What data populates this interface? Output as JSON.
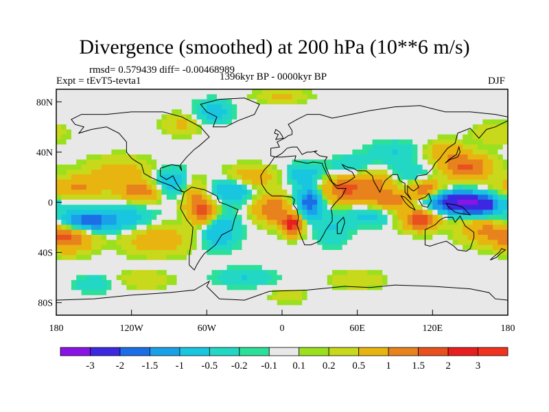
{
  "chart_data": {
    "type": "heatmap",
    "title": "Divergence (smoothed) at 200 hPa (10**6 m/s)",
    "stats_text": "rmsd= 0.579439 diff= -0.00468989",
    "experiment_text": "Expt = tEvT5-tevta1",
    "period_text": "1396kyr BP - 0000kyr BP",
    "season_text": "DJF",
    "x_range": [
      -180,
      180
    ],
    "y_range": [
      -90,
      90
    ],
    "x_ticks": [
      {
        "value": -180,
        "label": "180"
      },
      {
        "value": -120,
        "label": "120W"
      },
      {
        "value": -60,
        "label": "60W"
      },
      {
        "value": 0,
        "label": "0"
      },
      {
        "value": 60,
        "label": "60E"
      },
      {
        "value": 120,
        "label": "120E"
      },
      {
        "value": 180,
        "label": "180"
      }
    ],
    "y_ticks": [
      {
        "value": 80,
        "label": "80N"
      },
      {
        "value": 40,
        "label": "40N"
      },
      {
        "value": 0,
        "label": "0"
      },
      {
        "value": -40,
        "label": "40S"
      },
      {
        "value": -80,
        "label": "80S"
      }
    ],
    "colorbar": {
      "levels": [
        "-3",
        "-2",
        "-1.5",
        "-1",
        "-0.5",
        "-0.2",
        "-0.1",
        "0.1",
        "0.2",
        "0.5",
        "1",
        "1.5",
        "2",
        "3"
      ],
      "colors": [
        "#8a14e6",
        "#3c28e0",
        "#1c6ee6",
        "#1aa0e8",
        "#19c6e0",
        "#22d8c4",
        "#2ce09a",
        "#e8e8e8",
        "#9ae01e",
        "#c8d81a",
        "#e8b410",
        "#e8821c",
        "#e8501e",
        "#e81e1e",
        "#f0321e"
      ]
    },
    "anomalies": [
      {
        "lon": -155,
        "lat": -15,
        "amp": -2.0,
        "sx": 16,
        "sy": 6
      },
      {
        "lon": -165,
        "lat": 12,
        "amp": 1.0,
        "sx": 18,
        "sy": 6
      },
      {
        "lon": -170,
        "lat": -28,
        "amp": 1.6,
        "sx": 14,
        "sy": 8
      },
      {
        "lon": -130,
        "lat": 24,
        "amp": 0.8,
        "sx": 18,
        "sy": 8
      },
      {
        "lon": -120,
        "lat": -12,
        "amp": -0.6,
        "sx": 14,
        "sy": 8
      },
      {
        "lon": -112,
        "lat": 8,
        "amp": 1.3,
        "sx": 12,
        "sy": 6
      },
      {
        "lon": -100,
        "lat": -30,
        "amp": 1.0,
        "sx": 18,
        "sy": 8
      },
      {
        "lon": -88,
        "lat": 15,
        "amp": -1.0,
        "sx": 10,
        "sy": 8
      },
      {
        "lon": -70,
        "lat": 5,
        "amp": 0.9,
        "sx": 8,
        "sy": 10
      },
      {
        "lon": -62,
        "lat": -8,
        "amp": 1.6,
        "sx": 8,
        "sy": 7
      },
      {
        "lon": -50,
        "lat": -22,
        "amp": -1.0,
        "sx": 10,
        "sy": 10
      },
      {
        "lon": -40,
        "lat": 10,
        "amp": -1.0,
        "sx": 12,
        "sy": 7
      },
      {
        "lon": -25,
        "lat": 20,
        "amp": 1.0,
        "sx": 14,
        "sy": 6
      },
      {
        "lon": -8,
        "lat": -5,
        "amp": 1.5,
        "sx": 10,
        "sy": 8
      },
      {
        "lon": 8,
        "lat": -18,
        "amp": 2.2,
        "sx": 6,
        "sy": 6
      },
      {
        "lon": 22,
        "lat": 0,
        "amp": -2.0,
        "sx": 7,
        "sy": 8
      },
      {
        "lon": 18,
        "lat": 22,
        "amp": -0.8,
        "sx": 10,
        "sy": 6
      },
      {
        "lon": 40,
        "lat": -20,
        "amp": -0.5,
        "sx": 10,
        "sy": 10
      },
      {
        "lon": 50,
        "lat": 10,
        "amp": 1.6,
        "sx": 14,
        "sy": 8
      },
      {
        "lon": 55,
        "lat": 28,
        "amp": -0.6,
        "sx": 12,
        "sy": 6
      },
      {
        "lon": 75,
        "lat": 18,
        "amp": 1.0,
        "sx": 12,
        "sy": 6
      },
      {
        "lon": 85,
        "lat": 2,
        "amp": 1.5,
        "sx": 12,
        "sy": 6
      },
      {
        "lon": 70,
        "lat": -10,
        "amp": -0.7,
        "sx": 12,
        "sy": 6
      },
      {
        "lon": 100,
        "lat": 22,
        "amp": -0.6,
        "sx": 14,
        "sy": 6
      },
      {
        "lon": 110,
        "lat": -14,
        "amp": 2.0,
        "sx": 10,
        "sy": 6
      },
      {
        "lon": 115,
        "lat": 10,
        "amp": 1.4,
        "sx": 10,
        "sy": 6
      },
      {
        "lon": 135,
        "lat": 0,
        "amp": -2.5,
        "sx": 14,
        "sy": 6
      },
      {
        "lon": 158,
        "lat": -2,
        "amp": -2.5,
        "sx": 12,
        "sy": 6
      },
      {
        "lon": 148,
        "lat": 28,
        "amp": 1.6,
        "sx": 14,
        "sy": 7
      },
      {
        "lon": 160,
        "lat": -22,
        "amp": 1.0,
        "sx": 14,
        "sy": 8
      },
      {
        "lon": 130,
        "lat": 40,
        "amp": 0.8,
        "sx": 12,
        "sy": 6
      },
      {
        "lon": 90,
        "lat": 40,
        "amp": -0.5,
        "sx": 14,
        "sy": 6
      },
      {
        "lon": -55,
        "lat": 72,
        "amp": -0.8,
        "sx": 10,
        "sy": 6
      },
      {
        "lon": -80,
        "lat": 62,
        "amp": 0.6,
        "sx": 10,
        "sy": 6
      },
      {
        "lon": 0,
        "lat": 85,
        "amp": 0.6,
        "sx": 14,
        "sy": 4
      },
      {
        "lon": -30,
        "lat": -60,
        "amp": -0.5,
        "sx": 16,
        "sy": 5
      },
      {
        "lon": 60,
        "lat": -62,
        "amp": 0.5,
        "sx": 14,
        "sy": 5
      },
      {
        "lon": -110,
        "lat": -62,
        "amp": 0.5,
        "sx": 14,
        "sy": 5
      },
      {
        "lon": 5,
        "lat": -75,
        "amp": 0.4,
        "sx": 10,
        "sy": 4
      },
      {
        "lon": -150,
        "lat": -65,
        "amp": -0.4,
        "sx": 12,
        "sy": 5
      },
      {
        "lon": 170,
        "lat": 55,
        "amp": 0.5,
        "sx": 12,
        "sy": 6
      }
    ]
  }
}
